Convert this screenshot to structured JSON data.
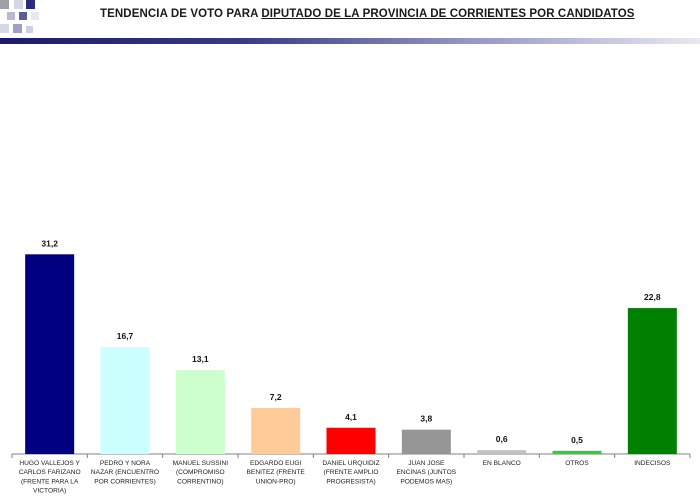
{
  "header": {
    "title_prefix": "TENDENCIA DE VOTO PARA ",
    "title_underlined": "DIPUTADO DE LA PROVINCIA DE CORRIENTES POR CANDIDATOS"
  },
  "chart_data": {
    "type": "bar",
    "title": "TENDENCIA DE VOTO PARA DIPUTADO DE LA PROVINCIA DE CORRIENTES POR CANDIDATOS",
    "categories": [
      [
        "HUGO VALLEJOS Y",
        "CARLOS FARIZANO",
        "(FRENTE PARA LA",
        "VICTORIA)"
      ],
      [
        "PEDRO Y NORA",
        "NAZAR (ENCUENTRO",
        "POR CORRIENTES)"
      ],
      [
        "MANUEL SUSSINI",
        "(COMPROMISO",
        "CORRENTINO)"
      ],
      [
        "EDGARDO EUGI",
        "BENITEZ (FRENTE",
        "UNION-PRO)"
      ],
      [
        "DANIEL URQUIDIZ",
        "(FRENTE AMPLIO",
        "PROGRESISTA)"
      ],
      [
        "JUAN JOSE",
        "ENCINAS (JUNTOS",
        "PODEMOS MAS)"
      ],
      [
        "EN BLANCO"
      ],
      [
        "OTROS"
      ],
      [
        "INDECISOS"
      ]
    ],
    "values": [
      31.2,
      16.7,
      13.1,
      7.2,
      4.1,
      3.8,
      0.6,
      0.5,
      22.8
    ],
    "value_labels": [
      "31,2",
      "16,7",
      "13,1",
      "7,2",
      "4,1",
      "3,8",
      "0,6",
      "0,5",
      "22,8"
    ],
    "colors": [
      "#000080",
      "#ccffff",
      "#ccffcc",
      "#ffcc99",
      "#ff0000",
      "#969696",
      "#c0c0c0",
      "#33cc33",
      "#008000"
    ],
    "grid": false,
    "legend": "none"
  }
}
